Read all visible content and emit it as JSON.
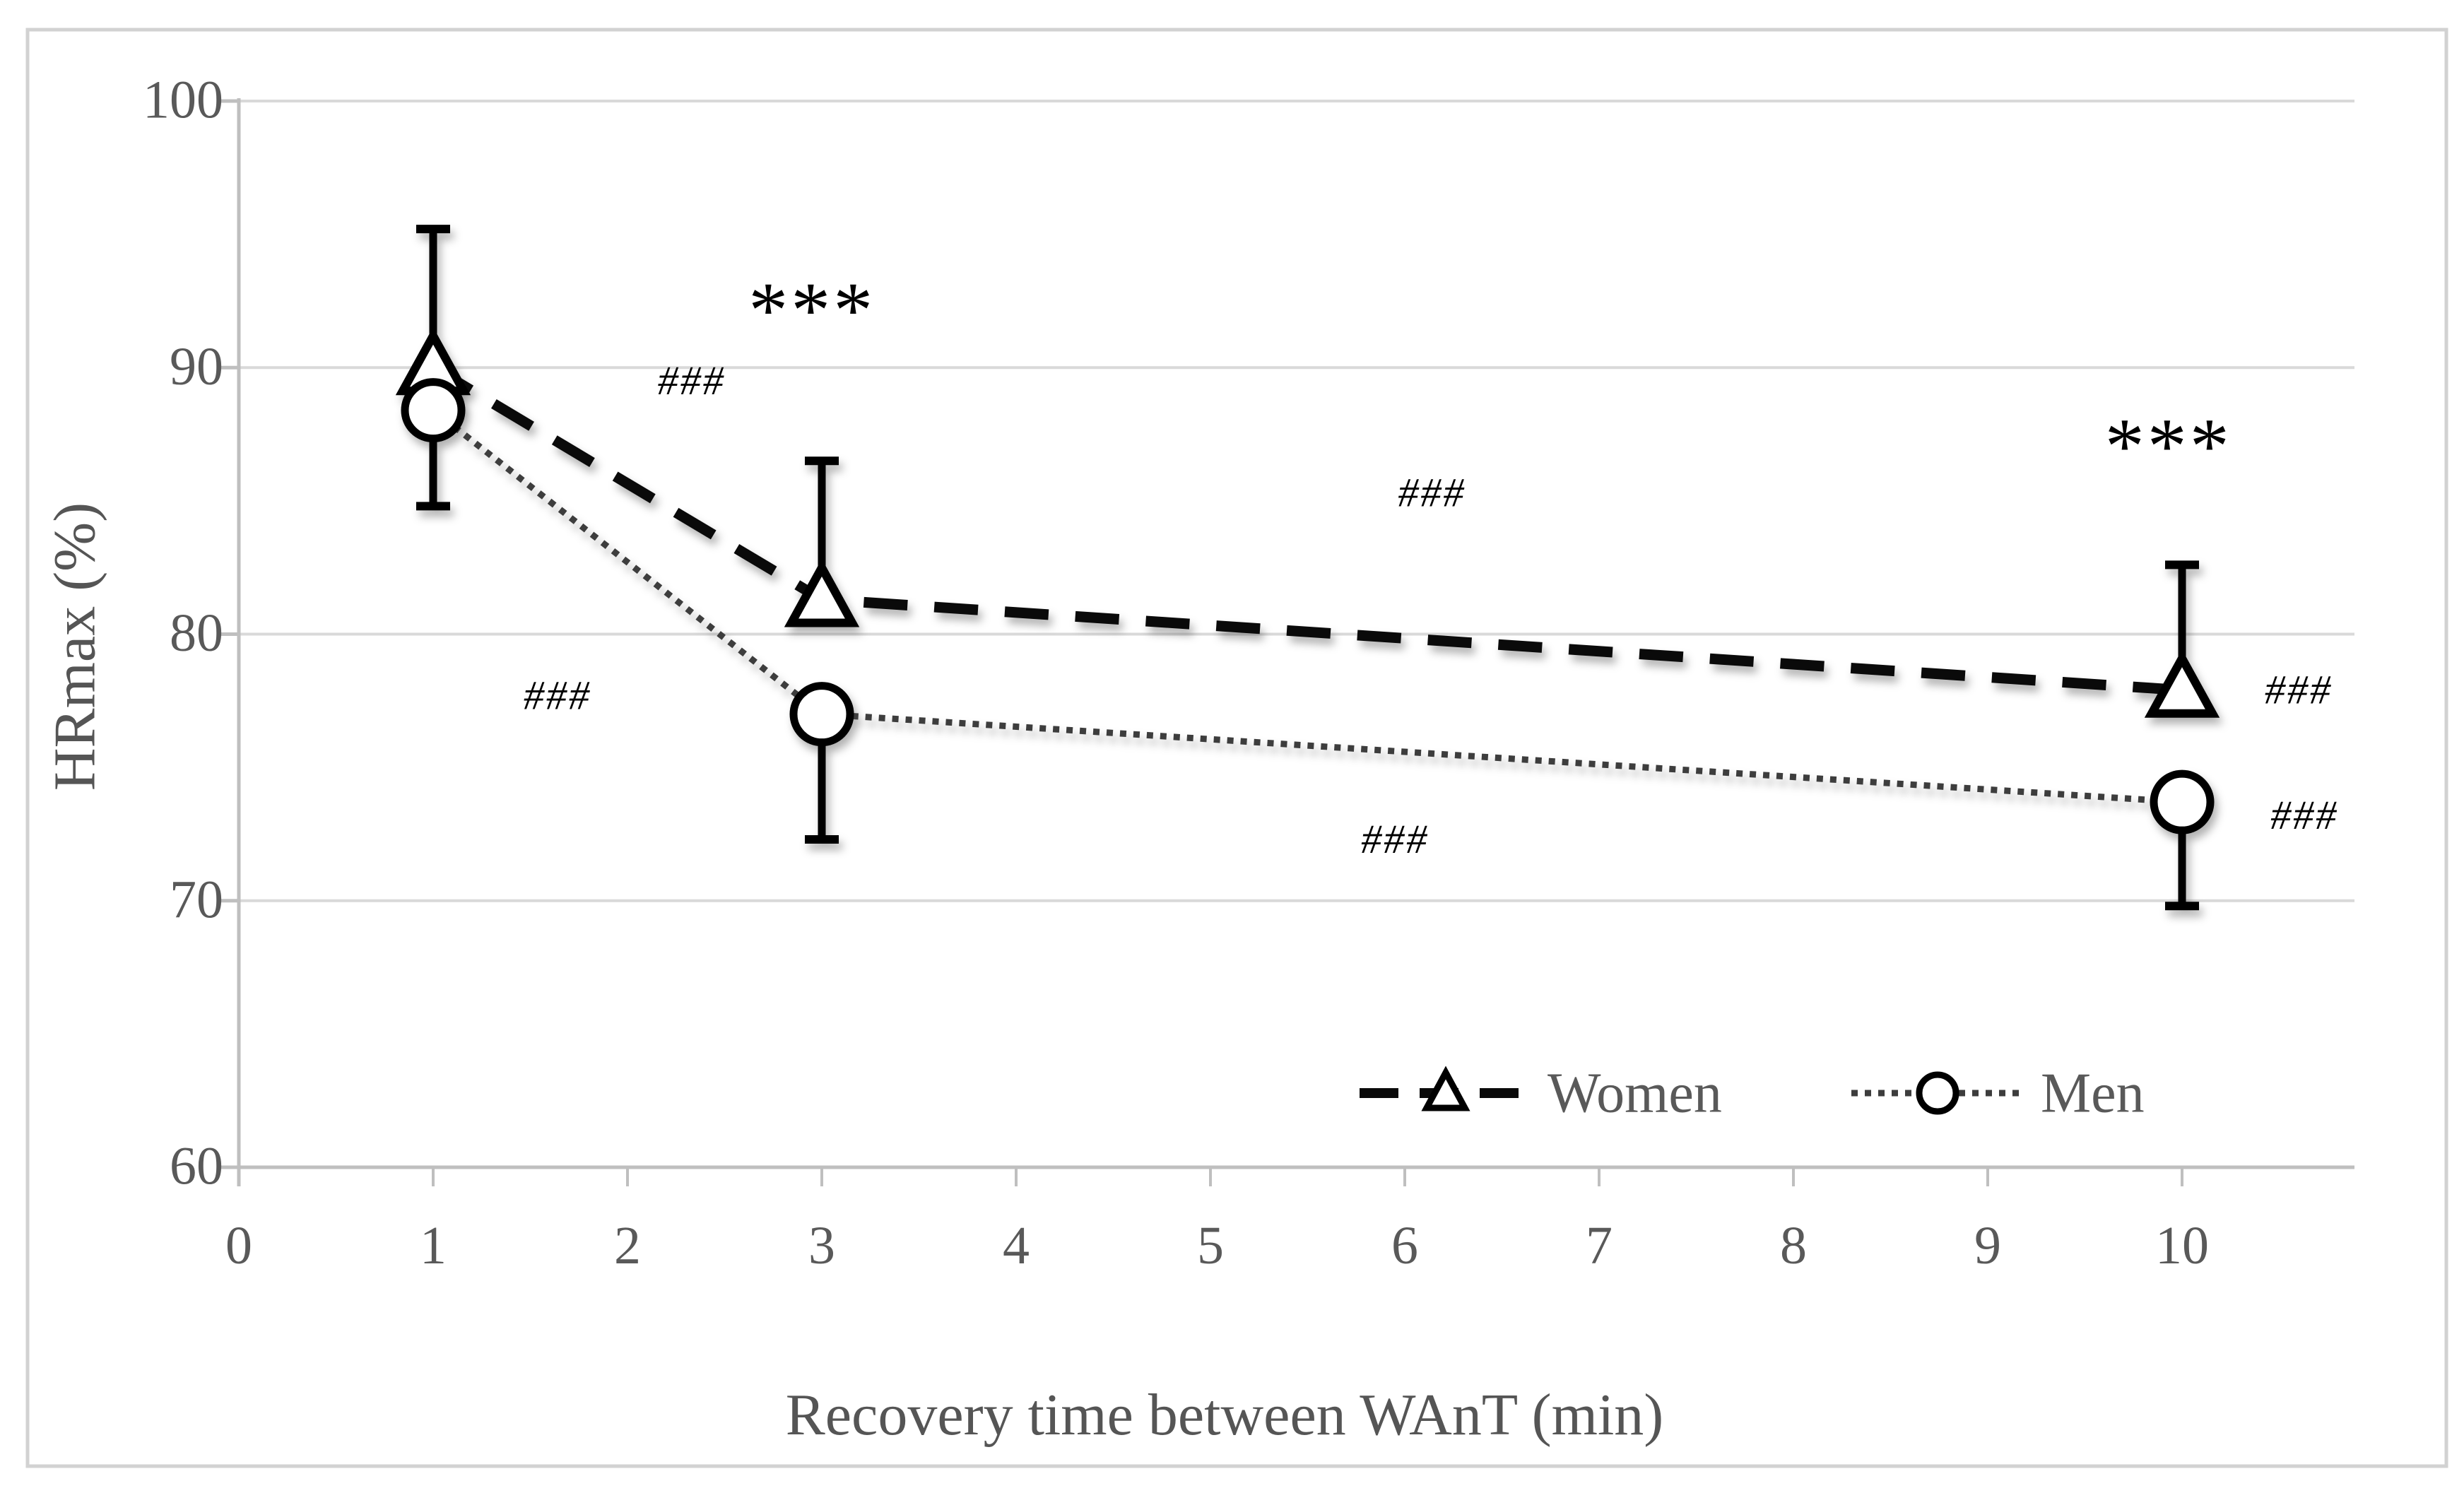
{
  "figure": {
    "background": "#ffffff",
    "frame_color": "#d2d2d2"
  },
  "colors": {
    "text_gray": "#595959",
    "title_gray": "#555555",
    "gridline": "#d9d9d9",
    "axis_line": "#bfbfbf",
    "women_line": "#0a0a0a",
    "men_line": "#3d3d3d",
    "marker_stroke": "#000000",
    "marker_fill": "#ffffff",
    "annotation": "#000000"
  },
  "chart_data": {
    "type": "line",
    "title": "",
    "xlabel": "Recovery time between WAnT (min)",
    "ylabel": "HRmax (%)",
    "xlim": [
      0,
      10.89
    ],
    "ylim": [
      60,
      100
    ],
    "x_ticks": [
      "0",
      "1",
      "2",
      "3",
      "4",
      "5",
      "6",
      "7",
      "8",
      "9",
      "10"
    ],
    "x_tick_values": [
      0,
      1,
      2,
      3,
      4,
      5,
      6,
      7,
      8,
      9,
      10
    ],
    "y_ticks": [
      "60",
      "70",
      "80",
      "90",
      "100"
    ],
    "y_tick_values": [
      60,
      70,
      80,
      90,
      100
    ],
    "grid": "horizontal",
    "legend_position": "bottom-inside",
    "series": [
      {
        "name": "Women",
        "marker": "triangle",
        "line_style": "dashed",
        "x": [
          1,
          3,
          10
        ],
        "y": [
          90.0,
          81.3,
          77.9
        ],
        "err_up": [
          5.2,
          5.2,
          4.7
        ],
        "err_down": [
          1.5,
          0.9,
          0
        ],
        "cap_up": [
          true,
          true,
          true
        ],
        "cap_down": [
          true,
          false,
          false
        ]
      },
      {
        "name": "Men",
        "marker": "circle",
        "line_style": "dotted",
        "x": [
          1,
          3,
          10
        ],
        "y": [
          88.4,
          77.0,
          73.7
        ],
        "err_up": [
          0,
          0,
          0
        ],
        "err_down": [
          3.6,
          4.7,
          3.9
        ],
        "cap_up": [
          false,
          false,
          false
        ],
        "cap_down": [
          true,
          true,
          true
        ]
      }
    ],
    "annotations": [
      {
        "text": "***",
        "x": 2.95,
        "y": 92.7,
        "style": "stars"
      },
      {
        "text": "***",
        "x": 9.93,
        "y": 87.6,
        "style": "stars"
      },
      {
        "text": "###",
        "x": 2.33,
        "y": 89.5,
        "style": "hash"
      },
      {
        "text": "###",
        "x": 1.64,
        "y": 77.7,
        "style": "hash"
      },
      {
        "text": "###",
        "x": 6.14,
        "y": 85.3,
        "style": "hash"
      },
      {
        "text": "###",
        "x": 5.95,
        "y": 72.3,
        "style": "hash"
      },
      {
        "text": "###",
        "x": 10.6,
        "y": 77.9,
        "style": "hash"
      },
      {
        "text": "###",
        "x": 10.63,
        "y": 73.2,
        "style": "hash"
      }
    ],
    "legend": [
      {
        "label": "Women",
        "marker": "triangle",
        "line_style": "dashed"
      },
      {
        "label": "Men",
        "marker": "circle",
        "line_style": "dotted"
      }
    ]
  }
}
